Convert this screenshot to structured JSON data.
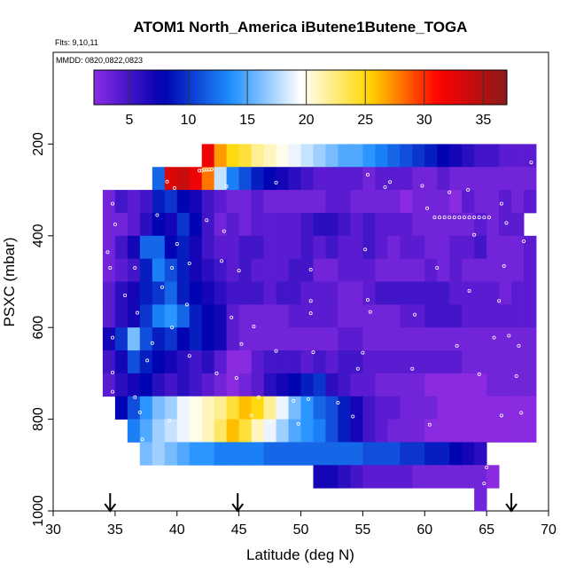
{
  "chart_data": {
    "type": "heatmap",
    "title": "ATOM1 North_America iButene1Butene_TOGA",
    "annotations": {
      "flights": "Flts: 9,10,11",
      "dates": "MMDD: 0820,0822,0823"
    },
    "xlabel": "Latitude (deg N)",
    "ylabel": "PSXC (mbar)",
    "xlim": [
      30,
      70
    ],
    "ylim": [
      1000,
      0
    ],
    "y_reversed": true,
    "x_ticks": [
      30,
      35,
      40,
      45,
      50,
      55,
      60,
      65,
      70
    ],
    "y_ticks": [
      200,
      400,
      600,
      800,
      1000
    ],
    "colorbar": {
      "range": [
        2,
        37
      ],
      "ticks": [
        5,
        10,
        15,
        20,
        25,
        30,
        35
      ],
      "palette": [
        "#8a2be2",
        "#0000b0",
        "#1e90ff",
        "#ffffff",
        "#ffd700",
        "#ff0000",
        "#8b1a1a"
      ]
    },
    "arrows_latitude": [
      34.6,
      44.9,
      67.0
    ],
    "cell": {
      "dx": 1,
      "dy": 50
    },
    "rows": [
      {
        "p": 225,
        "lat0": 42,
        "values": [
          32,
          27,
          25,
          24,
          22,
          21,
          20,
          19,
          18,
          17,
          16,
          15,
          15,
          14,
          13,
          12,
          11,
          10,
          9,
          8,
          7,
          6,
          5,
          5,
          4,
          4,
          4
        ]
      },
      {
        "p": 275,
        "lat0": 38,
        "values": [
          12,
          33,
          34,
          32,
          28,
          18,
          13,
          11,
          9,
          8,
          7,
          6,
          5,
          4,
          4,
          4,
          4,
          3,
          4,
          4,
          4,
          3,
          3,
          4,
          3,
          3,
          3,
          3,
          3,
          3,
          3
        ]
      },
      {
        "p": 325,
        "lat0": 34,
        "values": [
          3,
          5,
          4,
          5,
          9,
          10,
          8,
          7,
          5,
          4,
          3,
          3,
          4,
          3,
          3,
          3,
          3,
          3,
          4,
          4,
          3,
          3,
          3,
          3,
          2,
          3,
          3,
          3,
          2,
          4,
          3,
          3,
          4,
          3,
          4
        ]
      },
      {
        "p": 375,
        "lat0": 34,
        "values": [
          3,
          3,
          4,
          6,
          8,
          7,
          10,
          8,
          5,
          3,
          4,
          3,
          4,
          4,
          4,
          4,
          5,
          6,
          6,
          5,
          4,
          5,
          4,
          4,
          4,
          3,
          3,
          3,
          3,
          3,
          4,
          3,
          4,
          4
        ]
      },
      {
        "p": 425,
        "lat0": 34,
        "values": [
          3,
          5,
          7,
          12,
          12,
          8,
          9,
          7,
          5,
          4,
          4,
          5,
          5,
          4,
          4,
          4,
          5,
          4,
          5,
          4,
          4,
          5,
          4,
          3,
          4,
          4,
          3,
          3,
          4,
          4,
          5,
          3,
          3,
          3,
          4
        ]
      },
      {
        "p": 475,
        "lat0": 34,
        "values": [
          3,
          4,
          5,
          9,
          13,
          11,
          9,
          7,
          6,
          5,
          4,
          5,
          4,
          4,
          4,
          5,
          5,
          3,
          3,
          4,
          4,
          4,
          3,
          3,
          3,
          3,
          4,
          3,
          4,
          3,
          3,
          3,
          3,
          3,
          4
        ]
      },
      {
        "p": 525,
        "lat0": 34,
        "values": [
          4,
          6,
          7,
          9,
          10,
          12,
          9,
          8,
          7,
          6,
          5,
          5,
          5,
          4,
          5,
          5,
          4,
          4,
          4,
          3,
          3,
          4,
          5,
          5,
          5,
          5,
          5,
          5,
          4,
          4,
          4,
          4,
          3,
          4,
          4
        ]
      },
      {
        "p": 575,
        "lat0": 34,
        "values": [
          4,
          6,
          7,
          10,
          13,
          14,
          12,
          9,
          8,
          7,
          4,
          3,
          3,
          3,
          3,
          4,
          4,
          4,
          4,
          3,
          3,
          3,
          3,
          3,
          4,
          4,
          5,
          5,
          5,
          4,
          4,
          4,
          4,
          4,
          4
        ]
      },
      {
        "p": 625,
        "lat0": 34,
        "values": [
          7,
          10,
          16,
          11,
          9,
          10,
          8,
          9,
          8,
          7,
          4,
          3,
          3,
          3,
          3,
          3,
          3,
          3,
          3,
          4,
          4,
          3,
          3,
          3,
          3,
          3,
          3,
          3,
          3,
          3,
          3,
          3,
          3,
          3,
          3
        ]
      },
      {
        "p": 675,
        "lat0": 34,
        "values": [
          5,
          7,
          11,
          9,
          8,
          7,
          6,
          5,
          6,
          4,
          2,
          2,
          4,
          5,
          5,
          5,
          4,
          5,
          4,
          5,
          5,
          4,
          4,
          4,
          4,
          4,
          4,
          4,
          4,
          3,
          3,
          3,
          3,
          3,
          3
        ]
      },
      {
        "p": 725,
        "lat0": 34,
        "values": [
          4,
          6,
          7,
          8,
          6,
          5,
          6,
          5,
          4,
          3,
          2,
          3,
          4,
          6,
          7,
          8,
          9,
          10,
          6,
          5,
          4,
          4,
          3,
          3,
          3,
          3,
          2,
          2,
          2,
          2,
          2,
          3,
          3,
          3,
          3
        ]
      },
      {
        "p": 775,
        "lat0": 35,
        "values": [
          8,
          11,
          14,
          16,
          17,
          19,
          20,
          21,
          22,
          24,
          26,
          25,
          22,
          19,
          16,
          14,
          12,
          11,
          9,
          7,
          5,
          4,
          4,
          3,
          3,
          3,
          2,
          2,
          2,
          2,
          2,
          2,
          2,
          2
        ]
      },
      {
        "p": 825,
        "lat0": 36,
        "values": [
          13,
          15,
          17,
          18,
          19,
          20,
          21,
          23,
          26,
          24,
          21,
          19,
          17,
          15,
          14,
          13,
          11,
          9,
          7,
          5,
          4,
          3,
          3,
          3,
          2,
          2,
          2,
          2,
          2,
          2,
          2,
          2,
          2
        ]
      },
      {
        "p": 875,
        "lat0": 37,
        "values": [
          16,
          17,
          16,
          15,
          14,
          14,
          13,
          13,
          13,
          13,
          12,
          12,
          12,
          12,
          12,
          12,
          12,
          12,
          11,
          11,
          11,
          10,
          10,
          9,
          9,
          8,
          7,
          6
        ]
      },
      {
        "p": 925,
        "lat0": 51,
        "values": [
          7,
          7,
          6,
          5,
          4,
          4,
          4,
          4,
          3,
          3,
          3,
          3,
          3,
          3,
          2
        ]
      },
      {
        "p": 975,
        "lat0": 64,
        "values": [
          3
        ]
      }
    ],
    "sample_points": [
      {
        "lat": 41.8,
        "p": 258
      },
      {
        "lat": 42.0,
        "p": 258
      },
      {
        "lat": 42.2,
        "p": 256
      },
      {
        "lat": 42.4,
        "p": 256
      },
      {
        "lat": 42.6,
        "p": 256
      },
      {
        "lat": 42.8,
        "p": 255
      },
      {
        "lat": 39.2,
        "p": 282
      },
      {
        "lat": 39.8,
        "p": 296
      },
      {
        "lat": 44.0,
        "p": 292
      },
      {
        "lat": 48.0,
        "p": 284
      },
      {
        "lat": 55.4,
        "p": 267
      },
      {
        "lat": 56.8,
        "p": 294
      },
      {
        "lat": 57.2,
        "p": 283
      },
      {
        "lat": 59.8,
        "p": 291
      },
      {
        "lat": 62.0,
        "p": 305
      },
      {
        "lat": 63.5,
        "p": 300
      },
      {
        "lat": 66.2,
        "p": 330
      },
      {
        "lat": 68.6,
        "p": 240
      },
      {
        "lat": 60.2,
        "p": 340
      },
      {
        "lat": 60.8,
        "p": 360
      },
      {
        "lat": 61.2,
        "p": 360
      },
      {
        "lat": 61.6,
        "p": 360
      },
      {
        "lat": 62.0,
        "p": 360
      },
      {
        "lat": 62.4,
        "p": 360
      },
      {
        "lat": 62.8,
        "p": 360
      },
      {
        "lat": 63.2,
        "p": 360
      },
      {
        "lat": 63.6,
        "p": 360
      },
      {
        "lat": 64.0,
        "p": 360
      },
      {
        "lat": 64.4,
        "p": 360
      },
      {
        "lat": 64.8,
        "p": 360
      },
      {
        "lat": 65.2,
        "p": 360
      },
      {
        "lat": 34.8,
        "p": 330
      },
      {
        "lat": 35.0,
        "p": 375
      },
      {
        "lat": 38.4,
        "p": 355
      },
      {
        "lat": 42.4,
        "p": 366
      },
      {
        "lat": 43.8,
        "p": 390
      },
      {
        "lat": 34.4,
        "p": 436
      },
      {
        "lat": 40.0,
        "p": 418
      },
      {
        "lat": 43.6,
        "p": 455
      },
      {
        "lat": 55.2,
        "p": 430
      },
      {
        "lat": 64.0,
        "p": 398
      },
      {
        "lat": 66.6,
        "p": 372
      },
      {
        "lat": 68.0,
        "p": 412
      },
      {
        "lat": 34.6,
        "p": 470
      },
      {
        "lat": 36.6,
        "p": 470
      },
      {
        "lat": 39.6,
        "p": 470
      },
      {
        "lat": 41.0,
        "p": 460
      },
      {
        "lat": 45.0,
        "p": 476
      },
      {
        "lat": 50.8,
        "p": 474
      },
      {
        "lat": 61.0,
        "p": 470
      },
      {
        "lat": 66.4,
        "p": 466
      },
      {
        "lat": 35.8,
        "p": 530
      },
      {
        "lat": 38.8,
        "p": 512
      },
      {
        "lat": 40.8,
        "p": 550
      },
      {
        "lat": 50.8,
        "p": 542
      },
      {
        "lat": 55.4,
        "p": 540
      },
      {
        "lat": 63.6,
        "p": 520
      },
      {
        "lat": 66.0,
        "p": 542
      },
      {
        "lat": 36.8,
        "p": 568
      },
      {
        "lat": 39.6,
        "p": 600
      },
      {
        "lat": 44.4,
        "p": 578
      },
      {
        "lat": 46.2,
        "p": 598
      },
      {
        "lat": 50.8,
        "p": 569
      },
      {
        "lat": 55.6,
        "p": 566
      },
      {
        "lat": 59.2,
        "p": 572
      },
      {
        "lat": 34.8,
        "p": 622
      },
      {
        "lat": 38.0,
        "p": 634
      },
      {
        "lat": 45.2,
        "p": 636
      },
      {
        "lat": 48.0,
        "p": 651
      },
      {
        "lat": 51.0,
        "p": 654
      },
      {
        "lat": 55.0,
        "p": 655
      },
      {
        "lat": 62.6,
        "p": 640
      },
      {
        "lat": 65.6,
        "p": 622
      },
      {
        "lat": 66.8,
        "p": 618
      },
      {
        "lat": 67.6,
        "p": 640
      },
      {
        "lat": 34.8,
        "p": 698
      },
      {
        "lat": 37.6,
        "p": 672
      },
      {
        "lat": 41.0,
        "p": 662
      },
      {
        "lat": 43.2,
        "p": 700
      },
      {
        "lat": 44.8,
        "p": 710
      },
      {
        "lat": 54.6,
        "p": 690
      },
      {
        "lat": 59.0,
        "p": 690
      },
      {
        "lat": 64.4,
        "p": 702
      },
      {
        "lat": 67.4,
        "p": 706
      },
      {
        "lat": 34.8,
        "p": 740
      },
      {
        "lat": 36.6,
        "p": 752
      },
      {
        "lat": 46.6,
        "p": 752
      },
      {
        "lat": 49.4,
        "p": 760
      },
      {
        "lat": 50.6,
        "p": 756
      },
      {
        "lat": 53.0,
        "p": 764
      },
      {
        "lat": 37.0,
        "p": 785
      },
      {
        "lat": 39.4,
        "p": 803
      },
      {
        "lat": 46.0,
        "p": 792
      },
      {
        "lat": 47.6,
        "p": 804
      },
      {
        "lat": 49.8,
        "p": 810
      },
      {
        "lat": 54.2,
        "p": 794
      },
      {
        "lat": 60.4,
        "p": 812
      },
      {
        "lat": 66.2,
        "p": 792
      },
      {
        "lat": 67.8,
        "p": 786
      },
      {
        "lat": 37.2,
        "p": 844
      },
      {
        "lat": 65.0,
        "p": 905
      },
      {
        "lat": 64.8,
        "p": 940
      }
    ]
  }
}
